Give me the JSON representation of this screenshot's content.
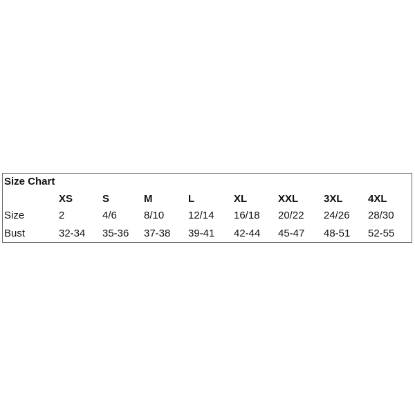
{
  "title": "Size Chart",
  "headers": [
    "XS",
    "S",
    "M",
    "L",
    "XL",
    "XXL",
    "3XL",
    "4XL"
  ],
  "rows": [
    {
      "label": "Size",
      "values": [
        "2",
        "4/6",
        "8/10",
        "12/14",
        "16/18",
        "20/22",
        "24/26",
        "28/30"
      ]
    },
    {
      "label": "Bust",
      "values": [
        "32-34",
        "35-36",
        "37-38",
        "39-41",
        "42-44",
        "45-47",
        "48-51",
        "52-55"
      ]
    }
  ]
}
